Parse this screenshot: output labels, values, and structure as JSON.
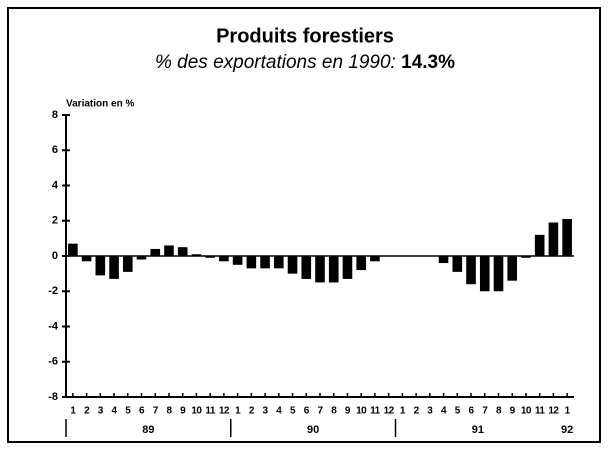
{
  "chart_data": {
    "type": "bar",
    "title": "Produits forestiers",
    "subtitle": "% des exportations en 1990:",
    "subtitle_value": "14.3%",
    "y_label": "Variation en %",
    "categories": [
      "1",
      "2",
      "3",
      "4",
      "5",
      "6",
      "7",
      "8",
      "9",
      "10",
      "11",
      "12",
      "1",
      "2",
      "3",
      "4",
      "5",
      "6",
      "7",
      "8",
      "9",
      "10",
      "11",
      "12",
      "1",
      "2",
      "3",
      "4",
      "5",
      "6",
      "7",
      "8",
      "9",
      "10",
      "11",
      "12",
      "1"
    ],
    "years": [
      "89",
      "90",
      "91",
      "92"
    ],
    "values": [
      0.7,
      -0.3,
      -1.1,
      -1.3,
      -0.9,
      -0.2,
      0.4,
      0.6,
      0.5,
      0.1,
      -0.1,
      -0.3,
      -0.5,
      -0.7,
      -0.7,
      -0.7,
      -1.0,
      -1.3,
      -1.5,
      -1.5,
      -1.3,
      -0.8,
      -0.3,
      0,
      0,
      0,
      0,
      -0.4,
      -0.9,
      -1.6,
      -2.0,
      -2.0,
      -1.4,
      -0.1,
      1.2,
      1.9,
      2.1
    ],
    "color": "#000000",
    "ylim": [
      -8,
      8
    ],
    "yticks": [
      -8,
      -6,
      -4,
      -2,
      0,
      2,
      4,
      6,
      8
    ]
  }
}
